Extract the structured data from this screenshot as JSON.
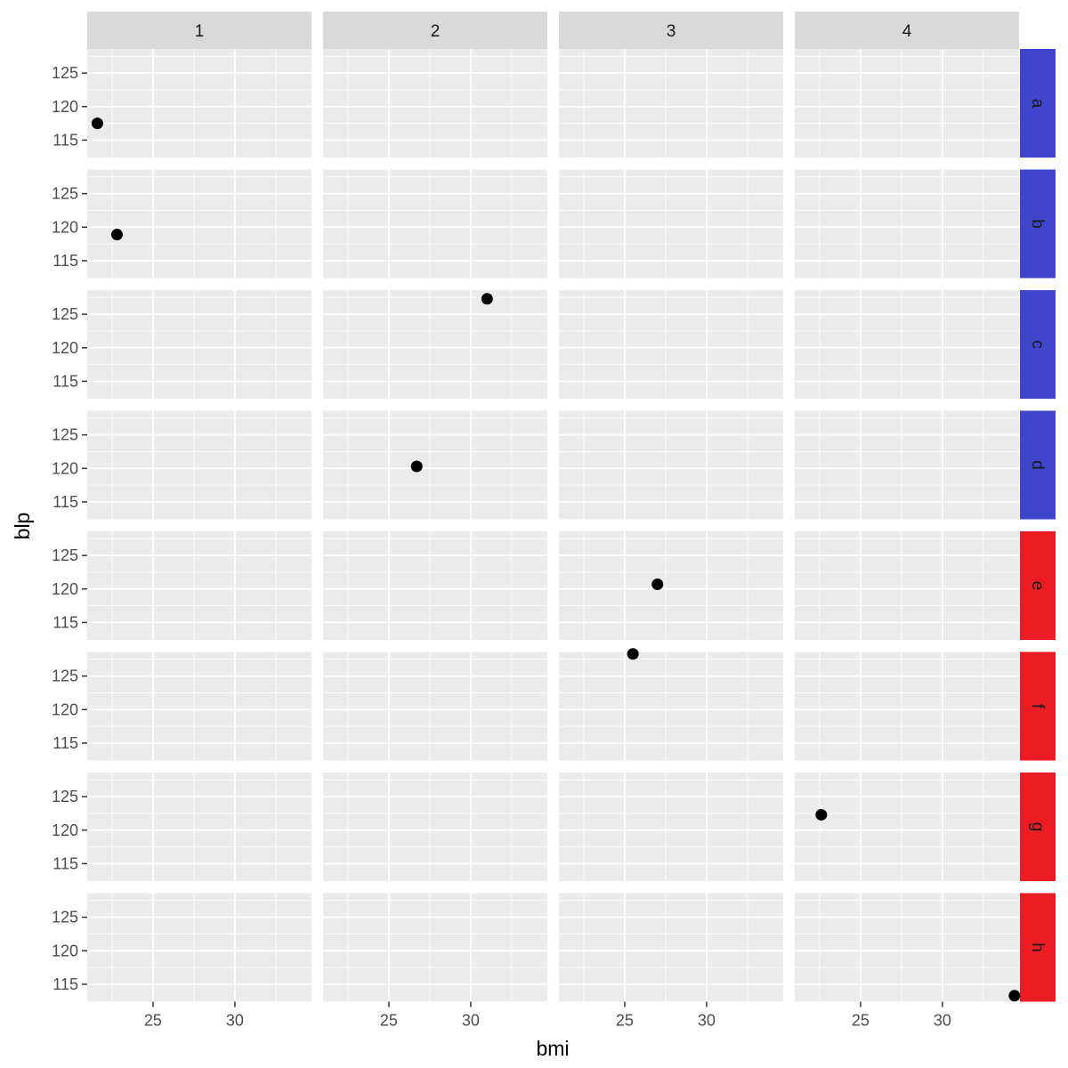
{
  "chart_data": {
    "type": "scatter",
    "xlabel": "bmi",
    "ylabel": "blp",
    "xlim": [
      20.98,
      34.68
    ],
    "ylim": [
      112.4,
      128.6
    ],
    "xticks": [
      25,
      30
    ],
    "yticks": [
      115,
      120,
      125
    ],
    "columns": [
      "1",
      "2",
      "3",
      "4"
    ],
    "rows": [
      {
        "label": "a",
        "color": "#3f46cc"
      },
      {
        "label": "b",
        "color": "#3f46cc"
      },
      {
        "label": "c",
        "color": "#3f46cc"
      },
      {
        "label": "d",
        "color": "#3f46cc"
      },
      {
        "label": "e",
        "color": "#ec1c24"
      },
      {
        "label": "f",
        "color": "#ec1c24"
      },
      {
        "label": "g",
        "color": "#ec1c24"
      },
      {
        "label": "h",
        "color": "#ec1c24"
      }
    ],
    "points": [
      {
        "row": "a",
        "col": "1",
        "x": 21.6,
        "y": 117.5
      },
      {
        "row": "b",
        "col": "1",
        "x": 22.8,
        "y": 118.9
      },
      {
        "row": "c",
        "col": "2",
        "x": 31.0,
        "y": 127.3
      },
      {
        "row": "d",
        "col": "2",
        "x": 26.7,
        "y": 120.3
      },
      {
        "row": "e",
        "col": "3",
        "x": 27.0,
        "y": 120.7
      },
      {
        "row": "f",
        "col": "3",
        "x": 25.5,
        "y": 128.3
      },
      {
        "row": "g",
        "col": "4",
        "x": 22.6,
        "y": 122.3
      },
      {
        "row": "h",
        "col": "4",
        "x": 34.4,
        "y": 113.3
      }
    ]
  },
  "colors": {
    "panel_bg": "#ebebeb",
    "grid_line": "#ffffff",
    "column_strip_bg": "#d9d9d9",
    "point": "#000000",
    "tick_color": "#333333"
  }
}
